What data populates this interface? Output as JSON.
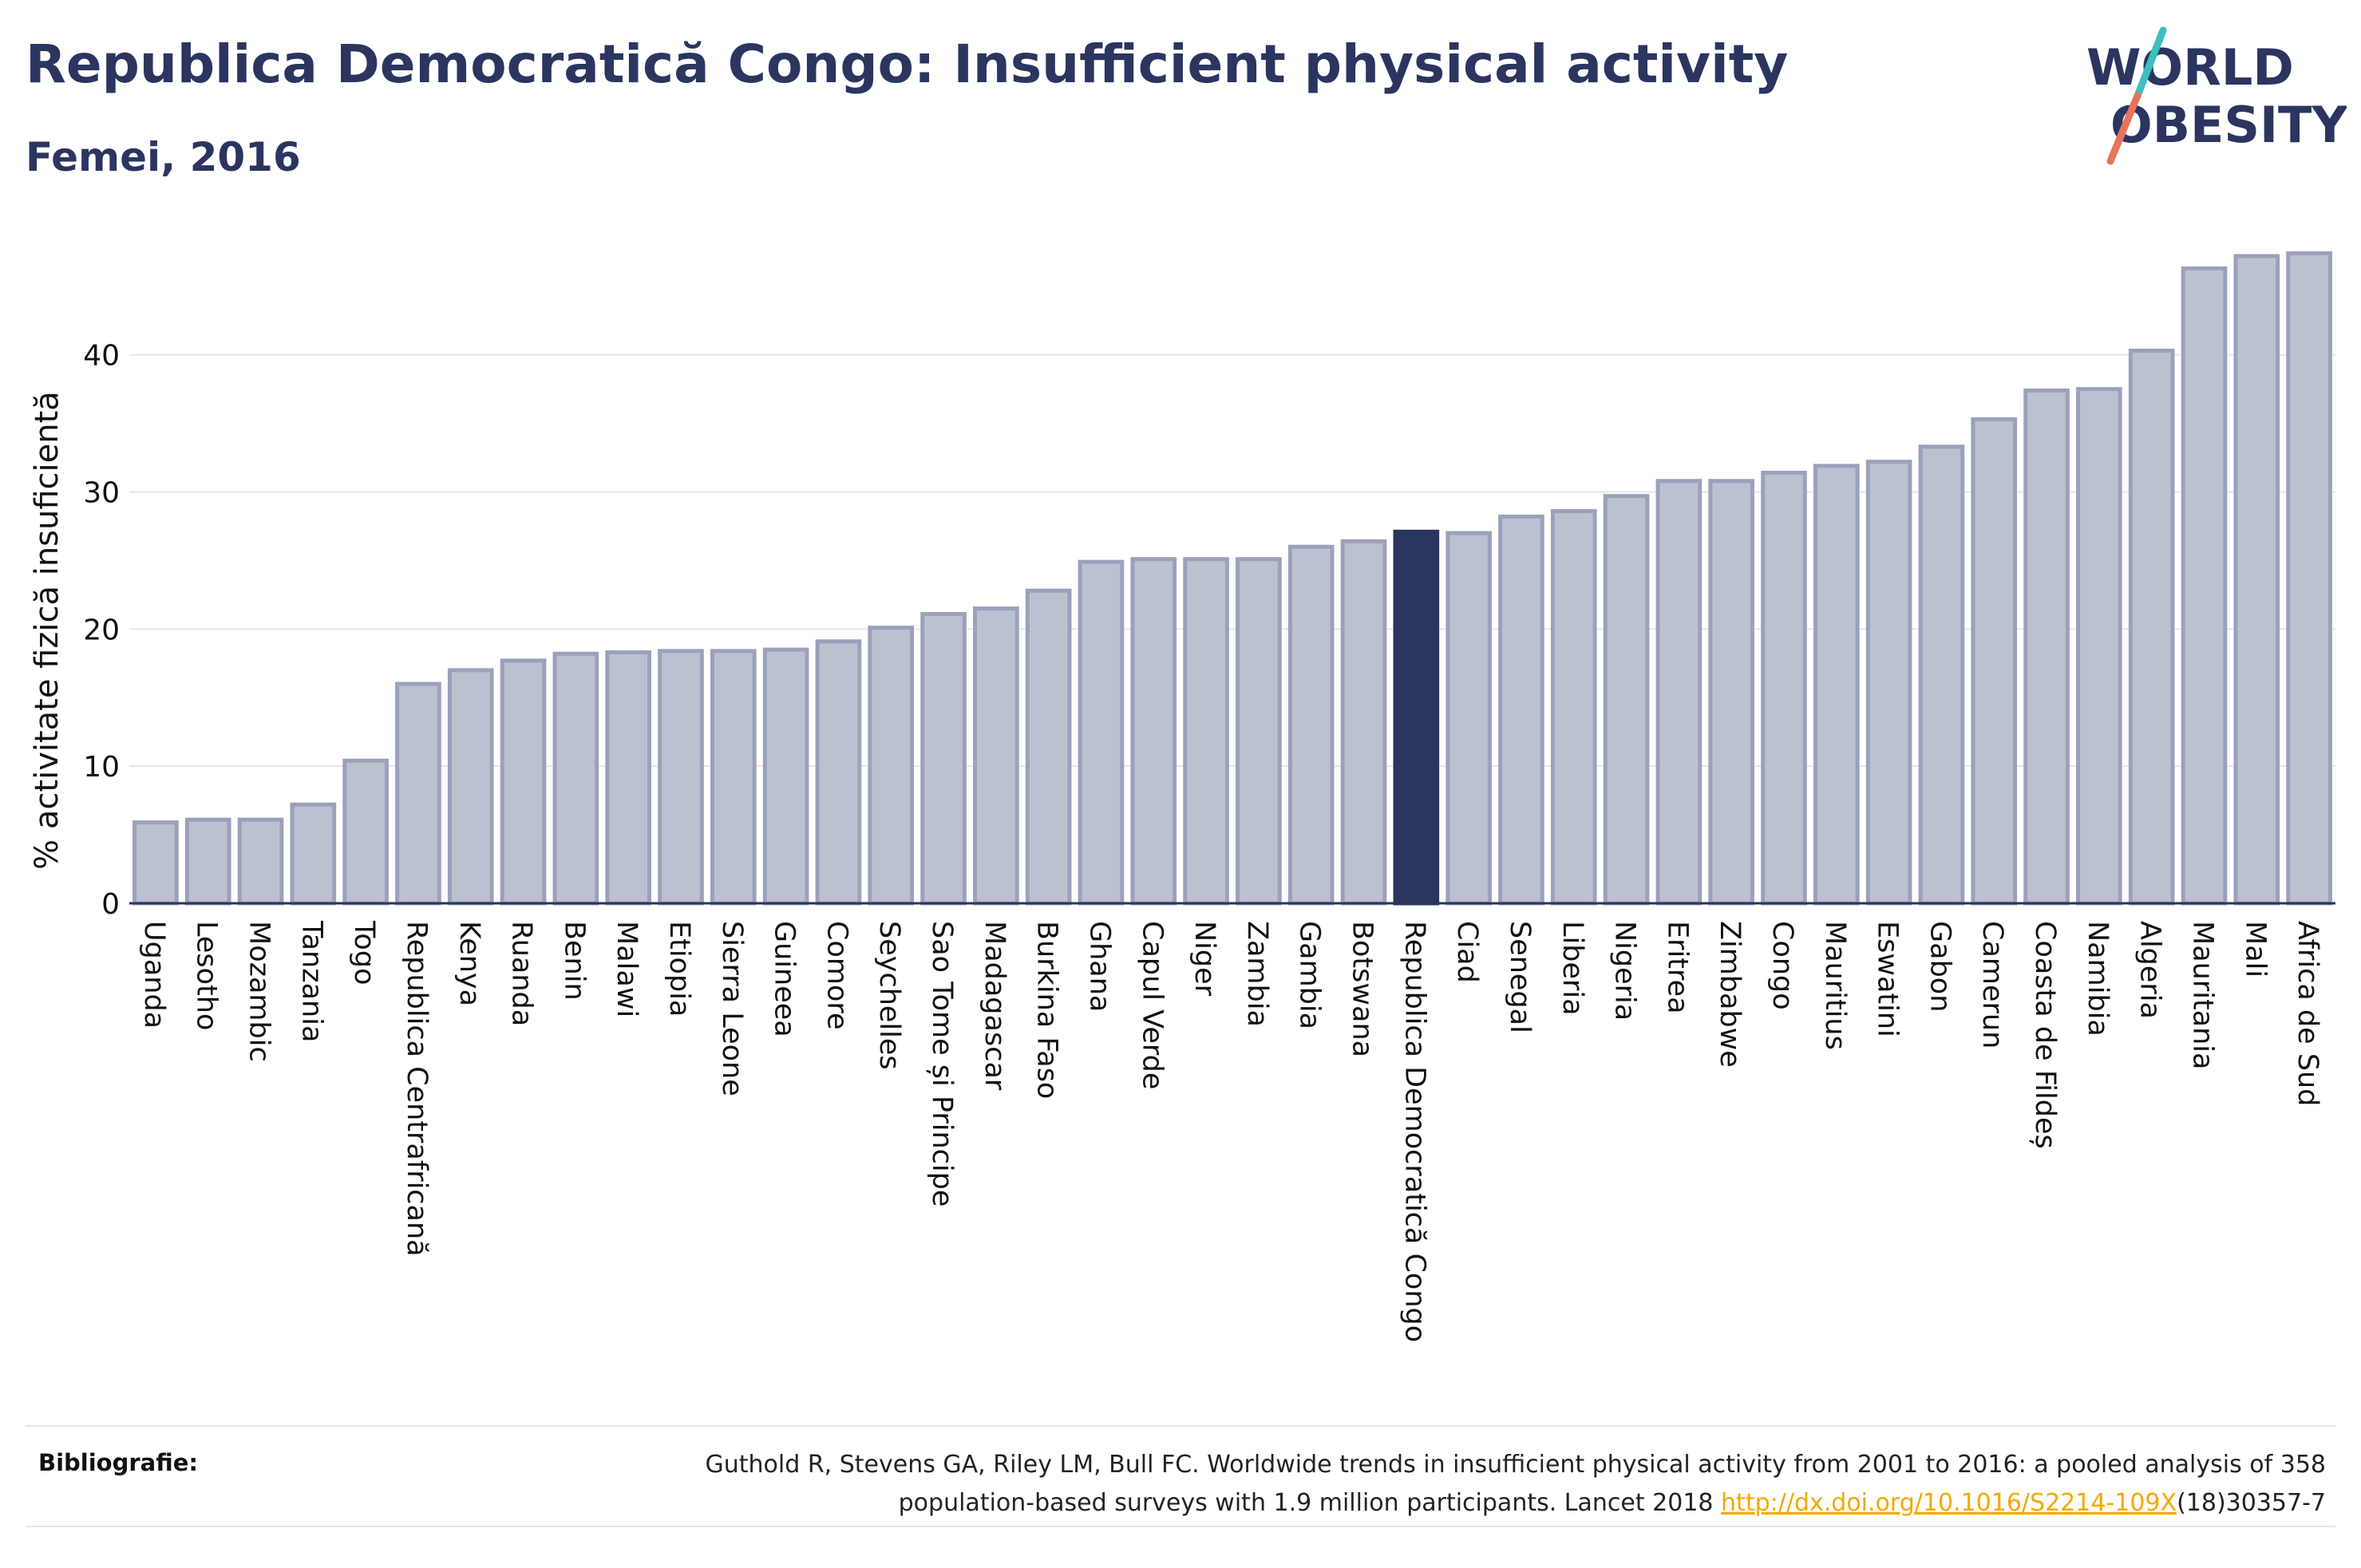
{
  "header": {
    "title": "Republica Democratică Congo: Insufficient physical activity",
    "subtitle": "Femei, 2016"
  },
  "logo": {
    "line1": "WORLD",
    "line2": "OBESITY",
    "slash_colors": [
      "#3cbfbf",
      "#e8735a"
    ]
  },
  "colors": {
    "bar_default": "#bcc1d0",
    "bar_default_stroke": "#9aa1bb",
    "bar_highlight": "#2b3560",
    "axis": "#2b3560",
    "grid": "#e6e6e6"
  },
  "chart_data": {
    "type": "bar",
    "ylabel": "% activitate fizică insuficientă",
    "ylim": [
      0,
      49
    ],
    "yticks": [
      0,
      10,
      20,
      30,
      40
    ],
    "grid": true,
    "highlight": "Republica Democratică Congo",
    "categories": [
      "Uganda",
      "Lesotho",
      "Mozambic",
      "Tanzania",
      "Togo",
      "Republica Centrafricană",
      "Kenya",
      "Ruanda",
      "Benin",
      "Malawi",
      "Etiopia",
      "Sierra Leone",
      "Guineea",
      "Comore",
      "Seychelles",
      "Sao Tome și Principe",
      "Madagascar",
      "Burkina Faso",
      "Ghana",
      "Capul Verde",
      "Niger",
      "Zambia",
      "Gambia",
      "Botswana",
      "Republica Democratică Congo",
      "Ciad",
      "Senegal",
      "Liberia",
      "Nigeria",
      "Eritrea",
      "Zimbabwe",
      "Congo",
      "Mauritius",
      "Eswatini",
      "Gabon",
      "Camerun",
      "Coasta de Fildeș",
      "Namibia",
      "Algeria",
      "Mauritania",
      "Mali",
      "Africa de Sud"
    ],
    "values": [
      5.9,
      6.1,
      6.1,
      7.2,
      10.4,
      16.0,
      17.0,
      17.7,
      18.2,
      18.3,
      18.4,
      18.4,
      18.5,
      19.1,
      20.1,
      21.1,
      21.5,
      22.8,
      24.9,
      25.1,
      25.1,
      25.1,
      26.0,
      26.4,
      27.1,
      27.0,
      28.2,
      28.6,
      29.7,
      30.8,
      30.8,
      31.4,
      31.9,
      32.2,
      33.3,
      35.3,
      37.4,
      37.5,
      40.3,
      46.3,
      47.2,
      47.4
    ]
  },
  "footer": {
    "label": "Bibliografie:",
    "citation_line1": "Guthold R, Stevens GA, Riley LM, Bull FC. Worldwide trends in insufficient physical activity from 2001 to 2016: a pooled analysis of 358",
    "citation_line2_prefix": "population-based surveys with 1.9 million participants. Lancet 2018 ",
    "citation_link": "http://dx.doi.org/10.1016/S2214-109X",
    "citation_suffix": "(18)30357-7"
  }
}
